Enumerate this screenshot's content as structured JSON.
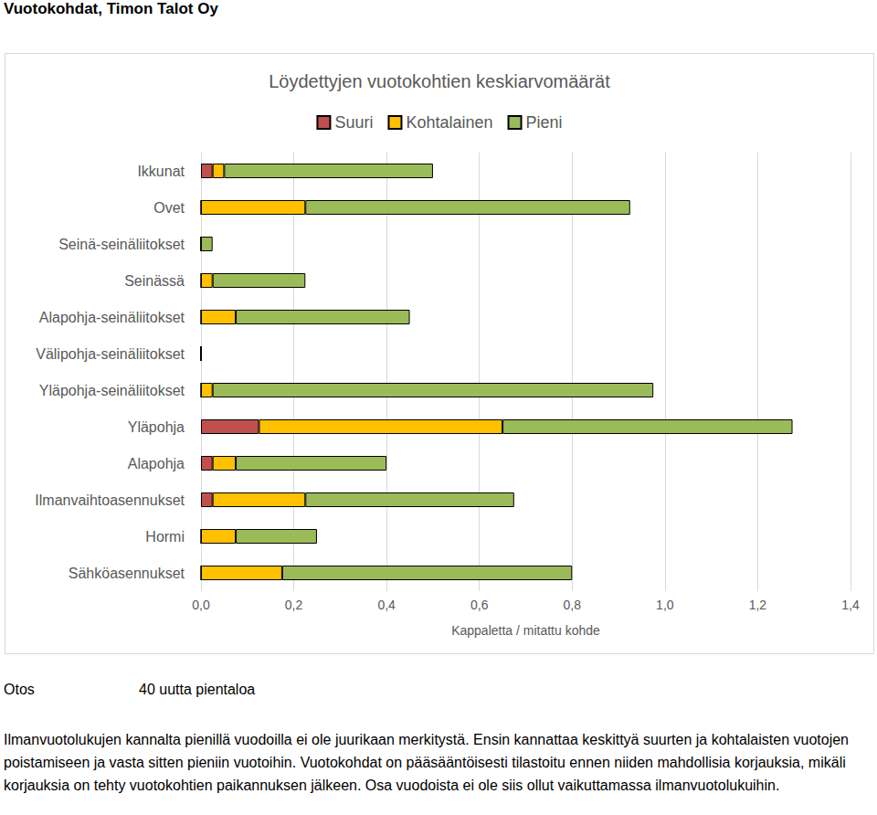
{
  "page": {
    "header": "Vuotokohdat, Timon Talot Oy",
    "sample_label": "Otos",
    "sample_value": "40 uutta pientaloa",
    "note": "Ilmanvuotolukujen kannalta pienillä vuodoilla ei ole juurikaan merkitystä. Ensin kannattaa keskittyä suurten ja kohtalaisten vuotojen poistamiseen ja vasta sitten pieniin vuotoihin. Vuotokohdat on pääsääntöisesti tilastoitu ennen niiden mahdollisia korjauksia, mikäli korjauksia on tehty vuotokohtien paikannuksen jälkeen. Osa vuodoista ei ole siis ollut vaikuttamassa ilmanvuotolukuihin."
  },
  "chart_data": {
    "type": "bar",
    "title": "Löydettyjen vuotokohtien keskiarvomäärät",
    "orientation": "horizontal",
    "stacked": true,
    "grid": true,
    "legend": "top",
    "x_label": "Kappaletta / mitattu kohde",
    "categories": [
      "Ikkunat",
      "Ovet",
      "Seinä-seinäliitokset",
      "Seinässä",
      "Alapohja-seinäliitokset",
      "Välipohja-seinäliitokset",
      "Yläpohja-seinäliitokset",
      "Yläpohja",
      "Alapohja",
      "Ilmanvaihtoasennukset",
      "Hormi",
      "Sähköasennukset"
    ],
    "series": [
      {
        "name": "Suuri",
        "color": "#c0504d",
        "values": [
          0.025,
          0,
          0,
          0,
          0,
          0,
          0,
          0.125,
          0.025,
          0.025,
          0,
          0
        ]
      },
      {
        "name": "Kohtalainen",
        "color": "#ffc000",
        "values": [
          0.025,
          0.225,
          0,
          0.025,
          0.075,
          0,
          0.025,
          0.525,
          0.05,
          0.2,
          0.075,
          0.175
        ]
      },
      {
        "name": "Pieni",
        "color": "#9bbb59",
        "values": [
          0.45,
          0.7,
          0.025,
          0.2,
          0.375,
          0,
          0.95,
          0.625,
          0.325,
          0.45,
          0.175,
          0.625
        ]
      }
    ],
    "xlim": [
      0,
      1.4
    ],
    "xticks": [
      {
        "value": 0,
        "label": "0,0"
      },
      {
        "value": 0.2,
        "label": "0,2"
      },
      {
        "value": 0.4,
        "label": "0,4"
      },
      {
        "value": 0.6,
        "label": "0,6"
      },
      {
        "value": 0.8,
        "label": "0,8"
      },
      {
        "value": 1.0,
        "label": "1,0"
      },
      {
        "value": 1.2,
        "label": "1,2"
      },
      {
        "value": 1.4,
        "label": "1,4"
      }
    ]
  }
}
